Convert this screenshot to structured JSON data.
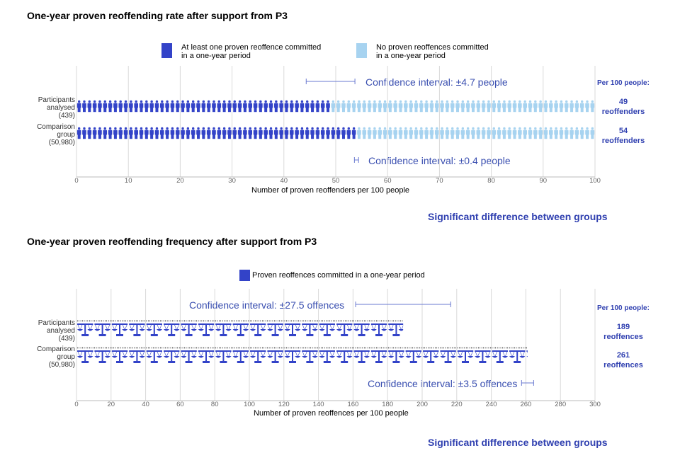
{
  "charts": {
    "rate": {
      "title": "One-year proven reoffending rate after support from P3",
      "legend": [
        {
          "label_line1": "At least one proven reoffence committed",
          "label_line2": "in a one-year period",
          "color": "#3343c8"
        },
        {
          "label_line1": "No proven reoffences committed",
          "label_line2": "in a one-year period",
          "color": "#a7d3f0"
        }
      ],
      "per100_label": "Per 100 people:",
      "rows": [
        {
          "label_lines": [
            "Participants",
            "analysed",
            "(439)"
          ],
          "stat_value": "49",
          "stat_unit": "reoffenders"
        },
        {
          "label_lines": [
            "Comparison",
            "group",
            "(50,980)"
          ],
          "stat_value": "54",
          "stat_unit": "reoffenders"
        }
      ],
      "ci_top": "Confidence interval: ±4.7 people",
      "ci_bottom": "Confidence interval: ±0.4 people",
      "xlabel": "Number of proven reoffenders per 100 people",
      "significance": "Significant difference between groups"
    },
    "frequency": {
      "title": "One-year proven reoffending frequency after support from P3",
      "legend": [
        {
          "label": "Proven reoffences committed in a one-year period",
          "color": "#3343c8"
        }
      ],
      "per100_label": "Per 100 people:",
      "rows": [
        {
          "label_lines": [
            "Participants",
            "analysed",
            "(439)"
          ],
          "stat_value": "189",
          "stat_unit": "reoffences"
        },
        {
          "label_lines": [
            "Comparison",
            "group",
            "(50,980)"
          ],
          "stat_value": "261",
          "stat_unit": "reoffences"
        }
      ],
      "ci_top": "Confidence interval: ±27.5 offences",
      "ci_bottom": "Confidence interval: ±3.5 offences",
      "xlabel": "Number of proven reoffences per 100 people",
      "significance": "Significant difference between groups"
    }
  },
  "chart_data": [
    {
      "type": "bar",
      "title": "One-year proven reoffending rate after support from P3",
      "xlabel": "Number of proven reoffenders per 100 people",
      "xlim": [
        0,
        100
      ],
      "xticks": [
        "0",
        "10",
        "20",
        "30",
        "40",
        "50",
        "60",
        "70",
        "80",
        "90",
        "100"
      ],
      "categories": [
        "Participants analysed (439)",
        "Comparison group (50,980)"
      ],
      "series": [
        {
          "name": "At least one proven reoffence committed in a one-year period",
          "values": [
            49,
            54
          ]
        },
        {
          "name": "No proven reoffences committed in a one-year period",
          "values": [
            51,
            46
          ]
        }
      ],
      "confidence_intervals": [
        4.7,
        0.4
      ],
      "colors": [
        "#3343c8",
        "#a7d3f0"
      ],
      "grid": true
    },
    {
      "type": "bar",
      "title": "One-year proven reoffending frequency after support from P3",
      "xlabel": "Number of proven reoffences per 100 people",
      "xlim": [
        0,
        300
      ],
      "xticks": [
        "0",
        "20",
        "40",
        "60",
        "80",
        "100",
        "120",
        "140",
        "160",
        "180",
        "200",
        "220",
        "240",
        "260",
        "280",
        "300"
      ],
      "categories": [
        "Participants analysed (439)",
        "Comparison group (50,980)"
      ],
      "series": [
        {
          "name": "Proven reoffences committed in a one-year period",
          "values": [
            189,
            261
          ]
        }
      ],
      "confidence_intervals": [
        27.5,
        3.5
      ],
      "colors": [
        "#3343c8"
      ],
      "grid": true
    }
  ]
}
